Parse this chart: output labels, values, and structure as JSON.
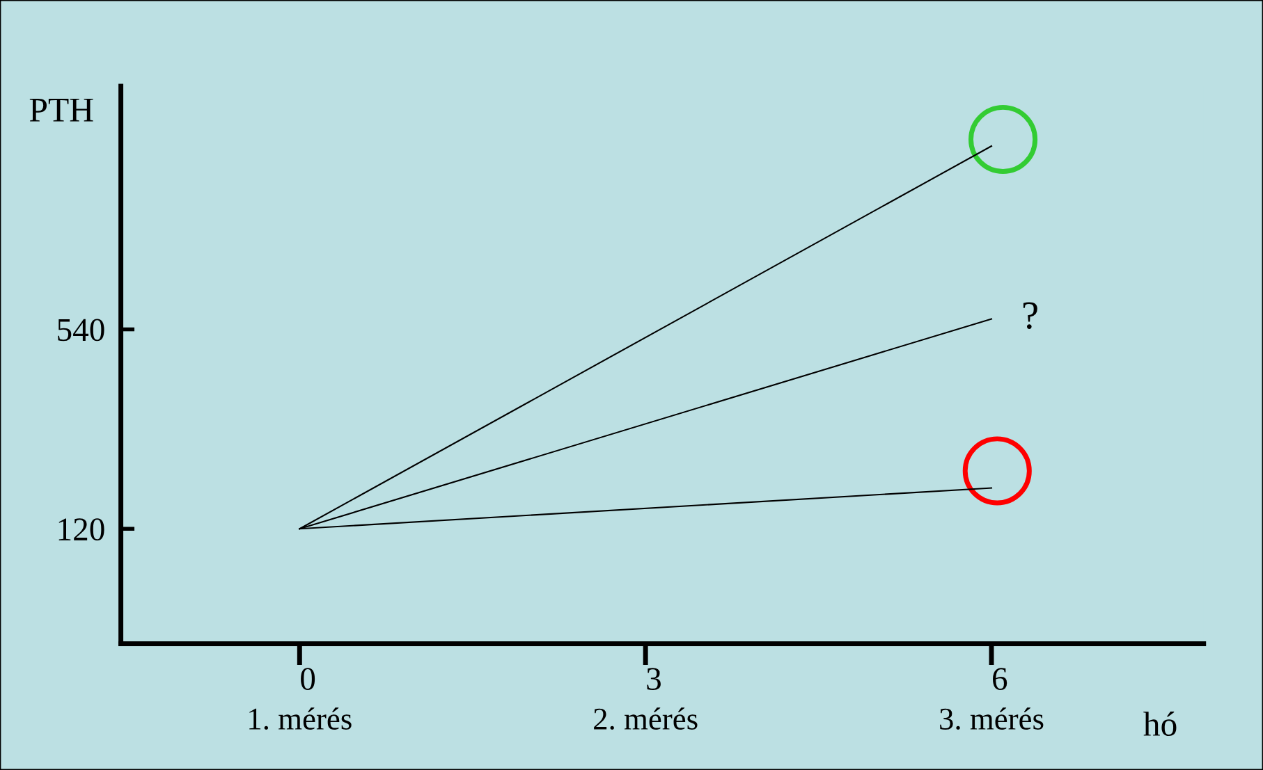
{
  "chart_data": {
    "type": "line",
    "xlabel": "hó",
    "ylabel": "PTH",
    "xlim": [
      -1.55,
      7.84
    ],
    "ylim": [
      -122,
      1052
    ],
    "xticks": [
      0,
      3,
      6
    ],
    "yticks": [
      120,
      540
    ],
    "grid": false,
    "legend": false,
    "series": [
      {
        "color": "#000000",
        "x": [
          0,
          6
        ],
        "values": [
          120,
          926
        ]
      },
      {
        "color": "#000000",
        "x": [
          0,
          6
        ],
        "values": [
          120,
          562
        ]
      },
      {
        "color": "#000000",
        "x": [
          0,
          6
        ],
        "values": [
          120,
          206
        ]
      },
      {
        "type": "scatter",
        "color": "#33cc33",
        "marker": "circle",
        "x": [
          6.1
        ],
        "values": [
          940
        ]
      },
      {
        "type": "scatter",
        "color": "#ff0000",
        "marker": "circle",
        "x": [
          6.05
        ],
        "values": [
          242
        ]
      }
    ],
    "annotations": [
      {
        "text": "?",
        "x": 6,
        "y": 562
      },
      "1. mérés",
      "2. mérés",
      "3. mérés"
    ]
  }
}
